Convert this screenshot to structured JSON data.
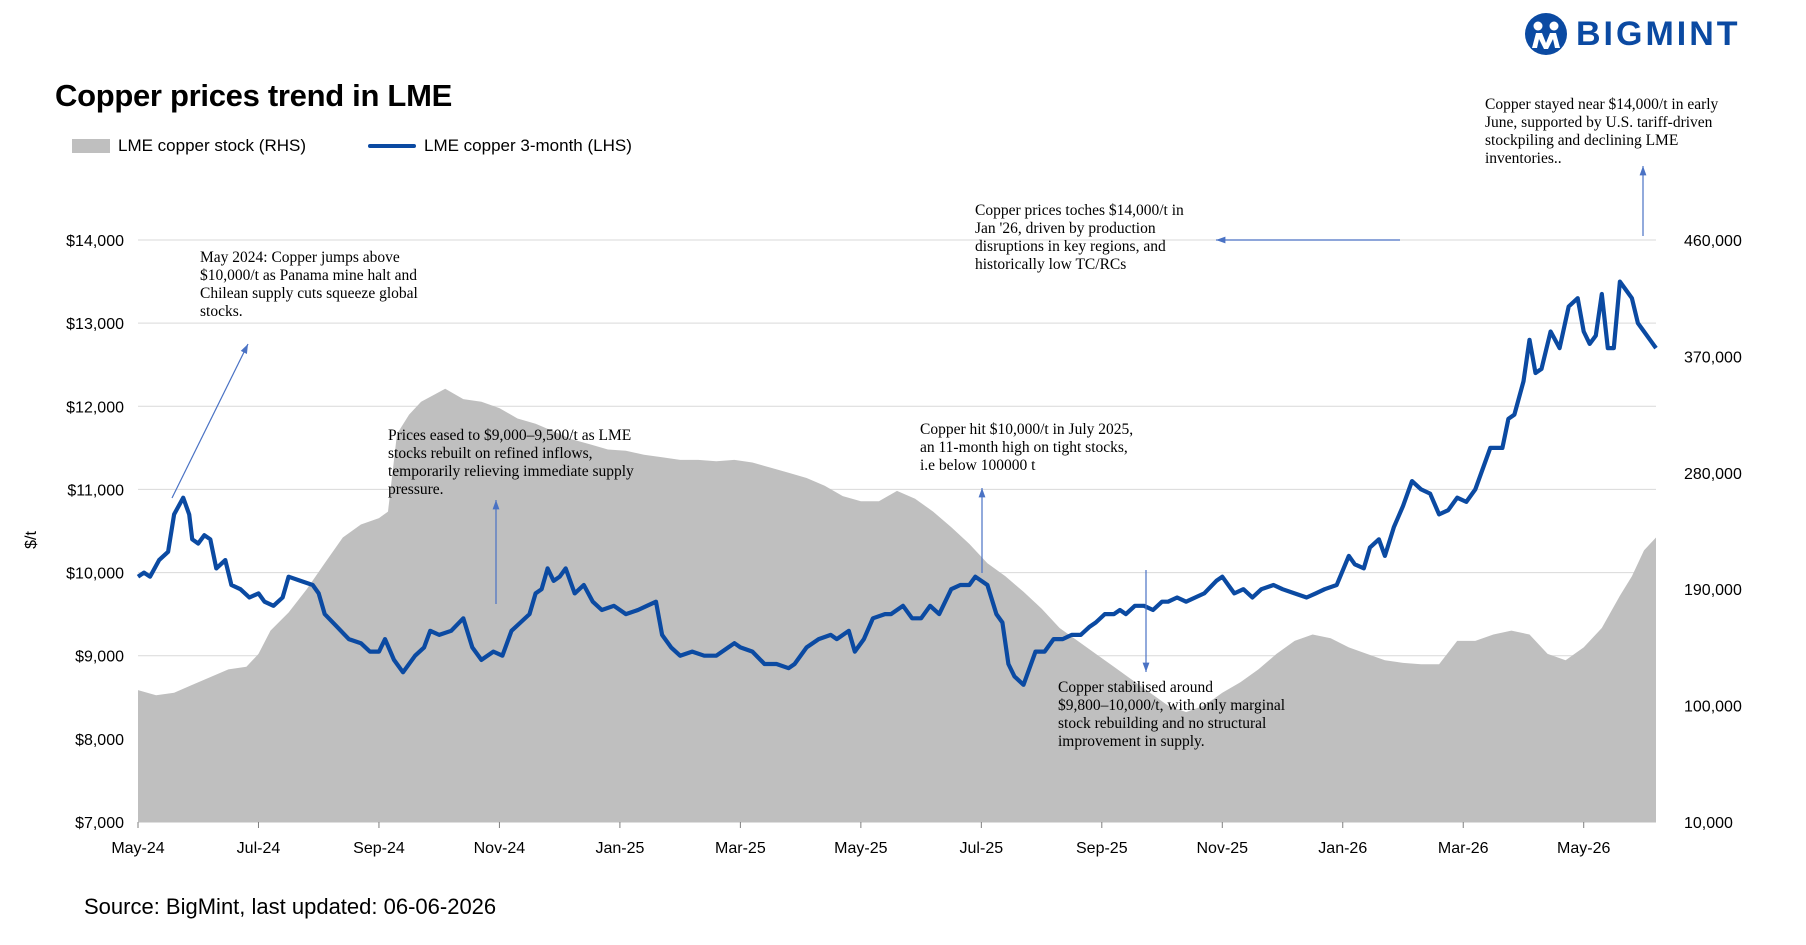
{
  "header": {
    "title": "Copper prices trend in LME",
    "legend": [
      "LME copper stock (RHS)",
      "LME copper 3-month (LHS)"
    ],
    "source": "Source: BigMint, last updated: 06-06-2026",
    "logo_text": "BIGMINT"
  },
  "colors": {
    "price_line": "#0b4aa2",
    "stock_area": "#bfbfbf",
    "brand": "#0b4aa2",
    "grid": "#d9d9d9",
    "annotation_arrow": "#4a72c4"
  },
  "icons": {
    "logo": "bigmint-logo-icon"
  },
  "chart_data": {
    "type": "line",
    "title": "Copper prices trend in LME",
    "ylabel": "$/t",
    "ylim": [
      7000,
      14000
    ],
    "y2lim": [
      10000,
      460000
    ],
    "yticks": [
      "$7,000",
      "$8,000",
      "$9,000",
      "$10,000",
      "$11,000",
      "$12,000",
      "$13,000",
      "$14,000"
    ],
    "y2ticks": [
      "10,000",
      "100,000",
      "190,000",
      "280,000",
      "370,000",
      "460,000"
    ],
    "xticks": [
      "May-24",
      "Jul-24",
      "Sep-24",
      "Nov-24",
      "Jan-25",
      "Mar-25",
      "May-25",
      "Jul-25",
      "Sep-25",
      "Nov-25",
      "Jan-26",
      "Mar-26",
      "May-26"
    ],
    "grid": true,
    "legend_position": "top-left",
    "x_range": [
      0,
      25.2
    ],
    "series": [
      {
        "name": "LME copper 3-month (LHS)",
        "axis": "left",
        "kind": "line",
        "points": [
          [
            0,
            9950
          ],
          [
            0.1,
            10000
          ],
          [
            0.2,
            9950
          ],
          [
            0.35,
            10150
          ],
          [
            0.5,
            10250
          ],
          [
            0.6,
            10700
          ],
          [
            0.75,
            10900
          ],
          [
            0.85,
            10700
          ],
          [
            0.9,
            10400
          ],
          [
            1.0,
            10350
          ],
          [
            1.1,
            10450
          ],
          [
            1.2,
            10400
          ],
          [
            1.3,
            10050
          ],
          [
            1.45,
            10150
          ],
          [
            1.55,
            9850
          ],
          [
            1.7,
            9800
          ],
          [
            1.85,
            9700
          ],
          [
            2.0,
            9750
          ],
          [
            2.1,
            9650
          ],
          [
            2.25,
            9600
          ],
          [
            2.4,
            9700
          ],
          [
            2.5,
            9950
          ],
          [
            2.7,
            9900
          ],
          [
            2.9,
            9850
          ],
          [
            3.0,
            9750
          ],
          [
            3.1,
            9500
          ],
          [
            3.3,
            9350
          ],
          [
            3.5,
            9200
          ],
          [
            3.7,
            9150
          ],
          [
            3.85,
            9050
          ],
          [
            4.0,
            9050
          ],
          [
            4.1,
            9200
          ],
          [
            4.25,
            8950
          ],
          [
            4.4,
            8800
          ],
          [
            4.6,
            9000
          ],
          [
            4.75,
            9100
          ],
          [
            4.85,
            9300
          ],
          [
            5.0,
            9250
          ],
          [
            5.2,
            9300
          ],
          [
            5.4,
            9450
          ],
          [
            5.55,
            9100
          ],
          [
            5.7,
            8950
          ],
          [
            5.9,
            9050
          ],
          [
            6.05,
            9000
          ],
          [
            6.2,
            9300
          ],
          [
            6.35,
            9400
          ],
          [
            6.5,
            9500
          ],
          [
            6.6,
            9750
          ],
          [
            6.7,
            9800
          ],
          [
            6.8,
            10050
          ],
          [
            6.9,
            9900
          ],
          [
            7.0,
            9950
          ],
          [
            7.1,
            10050
          ],
          [
            7.25,
            9750
          ],
          [
            7.4,
            9850
          ],
          [
            7.55,
            9650
          ],
          [
            7.7,
            9550
          ],
          [
            7.9,
            9600
          ],
          [
            8.1,
            9500
          ],
          [
            8.3,
            9550
          ],
          [
            8.45,
            9600
          ],
          [
            8.6,
            9650
          ],
          [
            8.7,
            9250
          ],
          [
            8.85,
            9100
          ],
          [
            9.0,
            9000
          ],
          [
            9.2,
            9050
          ],
          [
            9.4,
            9000
          ],
          [
            9.6,
            9000
          ],
          [
            9.8,
            9100
          ],
          [
            9.9,
            9150
          ],
          [
            10.0,
            9100
          ],
          [
            10.2,
            9050
          ],
          [
            10.4,
            8900
          ],
          [
            10.6,
            8900
          ],
          [
            10.8,
            8850
          ],
          [
            10.9,
            8900
          ],
          [
            11.1,
            9100
          ],
          [
            11.3,
            9200
          ],
          [
            11.5,
            9250
          ],
          [
            11.6,
            9200
          ],
          [
            11.8,
            9300
          ],
          [
            11.9,
            9050
          ],
          [
            12.05,
            9200
          ],
          [
            12.2,
            9450
          ],
          [
            12.4,
            9500
          ],
          [
            12.5,
            9500
          ],
          [
            12.7,
            9600
          ],
          [
            12.85,
            9450
          ],
          [
            13.0,
            9450
          ],
          [
            13.15,
            9600
          ],
          [
            13.3,
            9500
          ],
          [
            13.5,
            9800
          ],
          [
            13.65,
            9850
          ],
          [
            13.8,
            9850
          ],
          [
            13.9,
            9950
          ],
          [
            14.1,
            9850
          ],
          [
            14.25,
            9500
          ],
          [
            14.35,
            9400
          ],
          [
            14.45,
            8900
          ],
          [
            14.55,
            8750
          ],
          [
            14.7,
            8650
          ],
          [
            14.8,
            8850
          ],
          [
            14.9,
            9050
          ],
          [
            15.05,
            9050
          ],
          [
            15.2,
            9200
          ],
          [
            15.35,
            9200
          ],
          [
            15.5,
            9250
          ],
          [
            15.65,
            9250
          ],
          [
            15.8,
            9350
          ],
          [
            15.9,
            9400
          ],
          [
            16.05,
            9500
          ],
          [
            16.2,
            9500
          ],
          [
            16.3,
            9550
          ],
          [
            16.4,
            9500
          ],
          [
            16.55,
            9600
          ],
          [
            16.7,
            9600
          ],
          [
            16.85,
            9550
          ],
          [
            17.0,
            9650
          ],
          [
            17.1,
            9650
          ],
          [
            17.25,
            9700
          ],
          [
            17.4,
            9650
          ],
          [
            17.55,
            9700
          ],
          [
            17.7,
            9750
          ],
          [
            17.9,
            9900
          ],
          [
            18.0,
            9950
          ],
          [
            18.2,
            9750
          ],
          [
            18.35,
            9800
          ],
          [
            18.5,
            9700
          ],
          [
            18.65,
            9800
          ],
          [
            18.85,
            9850
          ],
          [
            19.0,
            9800
          ],
          [
            19.2,
            9750
          ],
          [
            19.4,
            9700
          ],
          [
            19.55,
            9750
          ],
          [
            19.7,
            9800
          ],
          [
            19.9,
            9850
          ],
          [
            20.1,
            10200
          ],
          [
            20.2,
            10100
          ],
          [
            20.35,
            10050
          ],
          [
            20.45,
            10300
          ],
          [
            20.6,
            10400
          ],
          [
            20.7,
            10200
          ],
          [
            20.85,
            10550
          ],
          [
            21.0,
            10800
          ],
          [
            21.15,
            11100
          ],
          [
            21.3,
            11000
          ],
          [
            21.45,
            10950
          ],
          [
            21.6,
            10700
          ],
          [
            21.75,
            10750
          ],
          [
            21.9,
            10900
          ],
          [
            22.05,
            10850
          ],
          [
            22.2,
            11000
          ],
          [
            22.35,
            11300
          ],
          [
            22.45,
            11500
          ],
          [
            22.55,
            11500
          ],
          [
            22.65,
            11500
          ],
          [
            22.75,
            11850
          ],
          [
            22.85,
            11900
          ],
          [
            23.0,
            12300
          ],
          [
            23.1,
            12800
          ],
          [
            23.2,
            12400
          ],
          [
            23.3,
            12450
          ],
          [
            23.45,
            12900
          ],
          [
            23.6,
            12700
          ],
          [
            23.75,
            13200
          ],
          [
            23.9,
            13300
          ],
          [
            24.0,
            12900
          ],
          [
            24.1,
            12750
          ],
          [
            24.2,
            12850
          ],
          [
            24.3,
            13350
          ],
          [
            24.4,
            12700
          ],
          [
            24.5,
            12700
          ],
          [
            24.6,
            13500
          ],
          [
            24.7,
            13400
          ],
          [
            24.8,
            13300
          ],
          [
            24.9,
            13000
          ],
          [
            25.0,
            12900
          ],
          [
            25.1,
            12800
          ],
          [
            25.2,
            12700
          ]
        ]
      },
      {
        "name": "LME copper stock (RHS)",
        "axis": "right",
        "kind": "area",
        "points": [
          [
            0,
            112000
          ],
          [
            0.3,
            108000
          ],
          [
            0.6,
            110000
          ],
          [
            0.9,
            116000
          ],
          [
            1.2,
            122000
          ],
          [
            1.5,
            128000
          ],
          [
            1.8,
            130000
          ],
          [
            2.0,
            140000
          ],
          [
            2.2,
            158000
          ],
          [
            2.5,
            172000
          ],
          [
            2.8,
            190000
          ],
          [
            3.1,
            210000
          ],
          [
            3.4,
            230000
          ],
          [
            3.7,
            240000
          ],
          [
            4.0,
            245000
          ],
          [
            4.15,
            250000
          ],
          [
            4.3,
            310000
          ],
          [
            4.5,
            325000
          ],
          [
            4.7,
            335000
          ],
          [
            4.9,
            340000
          ],
          [
            5.1,
            345000
          ],
          [
            5.4,
            337000
          ],
          [
            5.7,
            335000
          ],
          [
            6.0,
            330000
          ],
          [
            6.3,
            322000
          ],
          [
            6.6,
            318000
          ],
          [
            6.9,
            312000
          ],
          [
            7.2,
            306000
          ],
          [
            7.5,
            302000
          ],
          [
            7.8,
            298000
          ],
          [
            8.1,
            297000
          ],
          [
            8.4,
            294000
          ],
          [
            8.7,
            292000
          ],
          [
            9.0,
            290000
          ],
          [
            9.3,
            290000
          ],
          [
            9.6,
            289000
          ],
          [
            9.9,
            290000
          ],
          [
            10.2,
            288000
          ],
          [
            10.5,
            284000
          ],
          [
            10.8,
            280000
          ],
          [
            11.1,
            276000
          ],
          [
            11.4,
            270000
          ],
          [
            11.7,
            262000
          ],
          [
            12.0,
            258000
          ],
          [
            12.3,
            258000
          ],
          [
            12.6,
            266000
          ],
          [
            12.9,
            260000
          ],
          [
            13.2,
            250000
          ],
          [
            13.5,
            238000
          ],
          [
            13.8,
            225000
          ],
          [
            14.1,
            210000
          ],
          [
            14.4,
            200000
          ],
          [
            14.7,
            188000
          ],
          [
            15.0,
            175000
          ],
          [
            15.3,
            160000
          ],
          [
            15.6,
            150000
          ],
          [
            15.9,
            140000
          ],
          [
            16.2,
            130000
          ],
          [
            16.5,
            120000
          ],
          [
            16.8,
            110000
          ],
          [
            17.1,
            100000
          ],
          [
            17.4,
            95000
          ],
          [
            17.7,
            100000
          ],
          [
            18.0,
            110000
          ],
          [
            18.3,
            118000
          ],
          [
            18.6,
            128000
          ],
          [
            18.9,
            140000
          ],
          [
            19.2,
            150000
          ],
          [
            19.5,
            155000
          ],
          [
            19.8,
            152000
          ],
          [
            20.1,
            145000
          ],
          [
            20.4,
            140000
          ],
          [
            20.7,
            135000
          ],
          [
            21.0,
            133000
          ],
          [
            21.3,
            132000
          ],
          [
            21.6,
            132000
          ],
          [
            21.9,
            150000
          ],
          [
            22.2,
            150000
          ],
          [
            22.5,
            155000
          ],
          [
            22.8,
            158000
          ],
          [
            23.1,
            155000
          ],
          [
            23.4,
            140000
          ],
          [
            23.7,
            135000
          ],
          [
            24.0,
            145000
          ],
          [
            24.3,
            160000
          ],
          [
            24.6,
            185000
          ],
          [
            24.8,
            200000
          ],
          [
            25.0,
            220000
          ],
          [
            25.2,
            230000
          ]
        ]
      }
    ],
    "annotations": [
      "May 2024: Copper jumps above $10,000/t as Panama mine halt and Chilean supply cuts squeeze global stocks.",
      "Prices eased to $9,000–9,500/t as LME stocks rebuilt on refined inflows, temporarily relieving immediate supply pressure.",
      "Copper hit $10,000/t in July 2025, an 11-month high on tight stocks, i.e below 100000 t",
      "Copper stabilised around $9,800–10,000/t, with only marginal stock rebuilding and no structural improvement in supply.",
      "Copper prices toches $14,000/t in Jan '26, driven by production disruptions in key regions, and historically low TC/RCs",
      "Copper stayed near $14,000/t in early June, supported by U.S. tariff-driven stockpiling and declining LME inventories.."
    ]
  }
}
